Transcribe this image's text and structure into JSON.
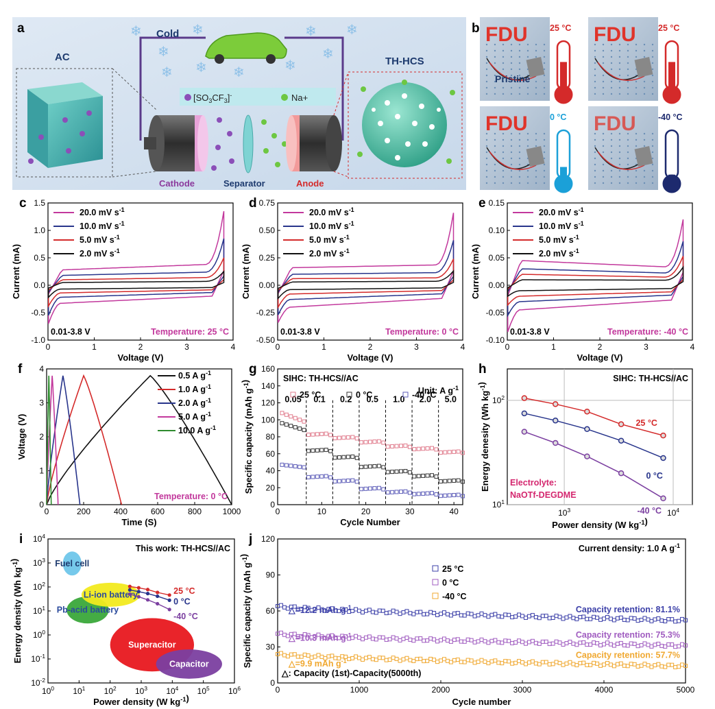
{
  "panel_a": {
    "letter": "a",
    "cold_label": "Cold",
    "ac_label": "AC",
    "ths_label": "TH-HCS",
    "anion_label": "[SO3CF3]-",
    "anion_main": "[SO",
    "anion_sub1": "3",
    "anion_mid": "CF",
    "anion_sub2": "3",
    "anion_end": "]",
    "anion_sup": "-",
    "cation_label": "Na+",
    "cathode_label": "Cathode",
    "separator_label": "Separator",
    "anode_label": "Anode"
  },
  "panel_b": {
    "letter": "b",
    "fdu_text": "FDU",
    "pristine_label": "Pristine",
    "temps": [
      "25 °C",
      "25 °C",
      "0 °C",
      "-40 °C"
    ]
  },
  "chart_data": [
    {
      "id": "c",
      "type": "line",
      "letter": "c",
      "xlabel": "Voltage (V)",
      "ylabel": "Current (mA)",
      "xlim": [
        0,
        4
      ],
      "ylim": [
        -1.0,
        1.5
      ],
      "xticks": [
        "0",
        "1",
        "2",
        "3",
        "4"
      ],
      "yticks": [
        "-1.0",
        "-0.5",
        "0.0",
        "0.5",
        "1.0",
        "1.5"
      ],
      "voltage_window": "0.01-3.8 V",
      "temperature_label": "Temperature: 25 °C",
      "series": [
        {
          "name": "20.0 mV s-1",
          "color": "#c2389c",
          "top_mid": 0.28,
          "top_end": 1.35,
          "bot_mid": -0.33,
          "bot_start": -0.7
        },
        {
          "name": "10.0 mV s-1",
          "color": "#27348b",
          "top_mid": 0.18,
          "top_end": 0.85,
          "bot_mid": -0.22,
          "bot_start": -0.55
        },
        {
          "name": "5.0 mV s-1",
          "color": "#d42a2a",
          "top_mid": 0.1,
          "top_end": 0.5,
          "bot_mid": -0.14,
          "bot_start": -0.38
        },
        {
          "name": "2.0 mV s-1",
          "color": "#111111",
          "top_mid": 0.05,
          "top_end": 0.25,
          "bot_mid": -0.07,
          "bot_start": -0.22
        }
      ]
    },
    {
      "id": "d",
      "type": "line",
      "letter": "d",
      "xlabel": "Voltage (V)",
      "ylabel": "Current (mA)",
      "xlim": [
        0,
        4
      ],
      "ylim": [
        -0.5,
        0.75
      ],
      "xticks": [
        "0",
        "1",
        "2",
        "3",
        "4"
      ],
      "yticks": [
        "-0.50",
        "-0.25",
        "0.00",
        "0.25",
        "0.50",
        "0.75"
      ],
      "voltage_window": "0.01-3.8 V",
      "temperature_label": "Temperature: 0 °C",
      "series": [
        {
          "name": "20.0 mV s-1",
          "color": "#c2389c",
          "top_mid": 0.16,
          "top_end": 0.66,
          "bot_mid": -0.2,
          "bot_start": -0.34
        },
        {
          "name": "10.0 mV s-1",
          "color": "#27348b",
          "top_mid": 0.1,
          "top_end": 0.41,
          "bot_mid": -0.13,
          "bot_start": -0.27
        },
        {
          "name": "5.0 mV s-1",
          "color": "#d42a2a",
          "top_mid": 0.06,
          "top_end": 0.24,
          "bot_mid": -0.08,
          "bot_start": -0.2
        },
        {
          "name": "2.0 mV s-1",
          "color": "#111111",
          "top_mid": 0.03,
          "top_end": 0.13,
          "bot_mid": -0.04,
          "bot_start": -0.12
        }
      ]
    },
    {
      "id": "e",
      "type": "line",
      "letter": "e",
      "xlabel": "Voltage (V)",
      "ylabel": "Current (mA)",
      "xlim": [
        0,
        4
      ],
      "ylim": [
        -0.1,
        0.15
      ],
      "xticks": [
        "0",
        "1",
        "2",
        "3",
        "4"
      ],
      "yticks": [
        "-0.10",
        "-0.05",
        "0.00",
        "0.05",
        "0.10",
        "0.15"
      ],
      "voltage_window": "0.01-3.8 V",
      "temperature_label": "Temperature: -40 °C",
      "series": [
        {
          "name": "20.0 mV s-1",
          "color": "#c2389c",
          "top_mid": 0.045,
          "top_end": 0.12,
          "bot_mid": -0.045,
          "bot_start": -0.085
        },
        {
          "name": "10.0 mV s-1",
          "color": "#27348b",
          "top_mid": 0.03,
          "top_end": 0.08,
          "bot_mid": -0.03,
          "bot_start": -0.055
        },
        {
          "name": "5.0 mV s-1",
          "color": "#d42a2a",
          "top_mid": 0.02,
          "top_end": 0.053,
          "bot_mid": -0.02,
          "bot_start": -0.036
        },
        {
          "name": "2.0 mV s-1",
          "color": "#111111",
          "top_mid": 0.01,
          "top_end": 0.033,
          "bot_mid": -0.01,
          "bot_start": -0.02
        }
      ]
    },
    {
      "id": "f",
      "type": "line",
      "letter": "f",
      "xlabel": "Time (S)",
      "ylabel": "Voltage (V)",
      "xlim": [
        0,
        1000
      ],
      "ylim": [
        0,
        4
      ],
      "xticks": [
        "0",
        "200",
        "400",
        "600",
        "800",
        "1000"
      ],
      "yticks": [
        "0",
        "1",
        "2",
        "3",
        "4"
      ],
      "temperature_label": "Temperature: 0 °C",
      "series": [
        {
          "name": "0.5 A g-1",
          "color": "#111111",
          "charge_end": 560,
          "discharge_end": 1000
        },
        {
          "name": "1.0 A g-1",
          "color": "#d42a2a",
          "charge_end": 200,
          "discharge_end": 405
        },
        {
          "name": "2.0 A g-1",
          "color": "#27348b",
          "charge_end": 88,
          "discharge_end": 180
        },
        {
          "name": "5.0 A g-1",
          "color": "#c2389c",
          "charge_end": 30,
          "discharge_end": 62
        },
        {
          "name": "10.0 A g-1",
          "color": "#2e8b2e",
          "charge_end": 12,
          "discharge_end": 25
        }
      ]
    },
    {
      "id": "g",
      "type": "scatter",
      "letter": "g",
      "xlabel": "Cycle Number",
      "ylabel": "Specific capacity (mAh g-1)",
      "xlim": [
        0,
        42
      ],
      "ylim": [
        0,
        160
      ],
      "xticks": [
        "0",
        "10",
        "20",
        "30",
        "40"
      ],
      "yticks": [
        "0",
        "20",
        "40",
        "60",
        "80",
        "100",
        "120",
        "140",
        "160"
      ],
      "title": "SIHC: TH-HCS//AC",
      "unit_label": "Unit: A g-1",
      "rate_labels": [
        "0.05",
        "0.1",
        "0.2",
        "0.5",
        "1.0",
        "2.0",
        "5.0"
      ],
      "rate_boundaries": [
        6.5,
        12.5,
        18.5,
        24.5,
        30.5,
        36.5
      ],
      "series": [
        {
          "name": "25 °C",
          "color": "#e07b8c",
          "levels": [
            98,
            83,
            79,
            74,
            69,
            66,
            62
          ],
          "first": 108
        },
        {
          "name": "0 °C",
          "color": "#333333",
          "levels": [
            88,
            64,
            56,
            45,
            39,
            34,
            28
          ],
          "first": 96
        },
        {
          "name": "-40 °C",
          "color": "#5c5cb8",
          "levels": [
            44,
            33,
            28,
            19,
            15,
            13,
            11
          ],
          "first": 47
        }
      ]
    },
    {
      "id": "h",
      "type": "line",
      "letter": "h",
      "xlabel": "Power density (W kg-1)",
      "ylabel": "Energy denesity (Wh kg-1)",
      "xscale": "log",
      "yscale": "log",
      "xlim": [
        300,
        15000
      ],
      "ylim": [
        10,
        200
      ],
      "xticks": [
        "10^3",
        "10^4"
      ],
      "yticks": [
        "10^1",
        "10^2"
      ],
      "title": "SIHC: TH-HCS//AC",
      "electrolyte_line1": "Electrolyte:",
      "electrolyte_line2": "NaOTf-DEGDME",
      "series": [
        {
          "name": "25 °C",
          "color": "#d42a2a",
          "x": [
            430,
            830,
            1620,
            3330,
            8100
          ],
          "y": [
            105,
            92,
            78,
            59,
            46
          ]
        },
        {
          "name": "0 °C",
          "color": "#27348b",
          "x": [
            430,
            830,
            1620,
            3330,
            8100
          ],
          "y": [
            75,
            64,
            53,
            41,
            28
          ]
        },
        {
          "name": "-40 °C",
          "color": "#7b3fa0",
          "x": [
            430,
            830,
            1620,
            3330,
            8100
          ],
          "y": [
            50,
            39,
            29,
            20,
            11.5
          ]
        }
      ]
    },
    {
      "id": "i",
      "type": "scatter",
      "letter": "i",
      "xlabel": "Power density (W kg-1)",
      "ylabel": "Energy density (Wh kg-1)",
      "xscale": "log",
      "yscale": "log",
      "xlim": [
        1,
        1000000
      ],
      "ylim": [
        0.01,
        10000
      ],
      "xticks": [
        "10^0",
        "10^1",
        "10^2",
        "10^3",
        "10^4",
        "10^5",
        "10^6"
      ],
      "yticks": [
        "10^-2",
        "10^-1",
        "10^0",
        "10^1",
        "10^2",
        "10^3",
        "10^4"
      ],
      "title": "This work: TH-HCS//AC",
      "regions": [
        {
          "name": "Fuel cell",
          "color": "#6fc6ea",
          "text_color": "#1d3a6e"
        },
        {
          "name": "Li-ion battery",
          "color": "#f2ea1f",
          "text_color": "#2a4a9c"
        },
        {
          "name": "Pb-acid battery",
          "color": "#3aa83a",
          "text_color": "#2a4a9c"
        },
        {
          "name": "Superacitor",
          "color": "#e8181f",
          "text_color": "#ffffff"
        },
        {
          "name": "Capacitor",
          "color": "#7b3fa0",
          "text_color": "#ffffff"
        }
      ],
      "series": [
        {
          "name": "25 °C",
          "color": "#d42a2a",
          "x": [
            430,
            830,
            1620,
            3330,
            8100
          ],
          "y": [
            105,
            92,
            78,
            59,
            46
          ]
        },
        {
          "name": "0 °C",
          "color": "#27348b",
          "x": [
            430,
            830,
            1620,
            3330,
            8100
          ],
          "y": [
            75,
            64,
            53,
            41,
            28
          ]
        },
        {
          "name": "-40 °C",
          "color": "#7b3fa0",
          "x": [
            430,
            830,
            1620,
            3330,
            8100
          ],
          "y": [
            50,
            39,
            29,
            20,
            11.5
          ]
        }
      ]
    },
    {
      "id": "j",
      "type": "scatter",
      "letter": "j",
      "xlabel": "Cycle number",
      "ylabel": "Specific capacity (mAh g-1)",
      "xlim": [
        0,
        5000
      ],
      "ylim": [
        0,
        120
      ],
      "xticks": [
        "0",
        "1000",
        "2000",
        "3000",
        "4000",
        "5000"
      ],
      "yticks": [
        "0",
        "30",
        "60",
        "90",
        "120"
      ],
      "current_density": "Current density: 1.0 A g-1",
      "footnote": "△: Capacity (1st)-Capacity(5000th)",
      "delta_labels": [
        "△=12.2 mAh g-1",
        "△=10.3 mAh g-1",
        "△=9.9 mAh g-1"
      ],
      "series": [
        {
          "name": "25 °C",
          "color": "#3b3fa8",
          "start": 64,
          "end": 52,
          "retention": "Capacity retention: 81.1%"
        },
        {
          "name": "0 °C",
          "color": "#a05cc0",
          "start": 41,
          "end": 31,
          "retention": "Capacity retention: 75.3%"
        },
        {
          "name": "-40 °C",
          "color": "#f0a830",
          "start": 24,
          "end": 14,
          "retention": "Capacity retention: 57.7%"
        }
      ]
    }
  ]
}
